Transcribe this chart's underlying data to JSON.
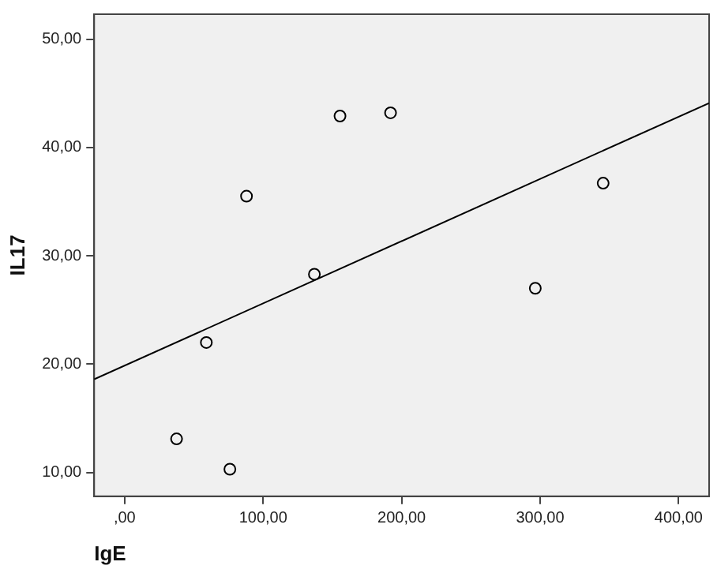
{
  "chart_data": {
    "type": "scatter",
    "xlabel": "IgE",
    "ylabel": "IL17",
    "xlim": [
      -22,
      422
    ],
    "ylim": [
      7.8,
      52.3
    ],
    "xticks": [
      {
        "value": 0,
        "label": ",00"
      },
      {
        "value": 100,
        "label": "100,00"
      },
      {
        "value": 200,
        "label": "200,00"
      },
      {
        "value": 300,
        "label": "300,00"
      },
      {
        "value": 400,
        "label": "400,00"
      }
    ],
    "yticks": [
      {
        "value": 10,
        "label": "10,00"
      },
      {
        "value": 20,
        "label": "20,00"
      },
      {
        "value": 30,
        "label": "30,00"
      },
      {
        "value": 40,
        "label": "40,00"
      },
      {
        "value": 50,
        "label": "50,00"
      }
    ],
    "grid": false,
    "legend": false,
    "marker": "circle",
    "series": [
      {
        "color": "#000000",
        "x": [
          37.5,
          76,
          59,
          88,
          137,
          155.5,
          192,
          296.5,
          345.5
        ],
        "values": [
          13.1,
          10.3,
          22.0,
          35.5,
          28.3,
          42.9,
          43.2,
          27.0,
          36.7
        ]
      },
      {
        "type": "line",
        "marker": "none",
        "color": "#000000",
        "x": [
          -22,
          422
        ],
        "values": [
          18.6,
          44.1
        ]
      }
    ]
  }
}
